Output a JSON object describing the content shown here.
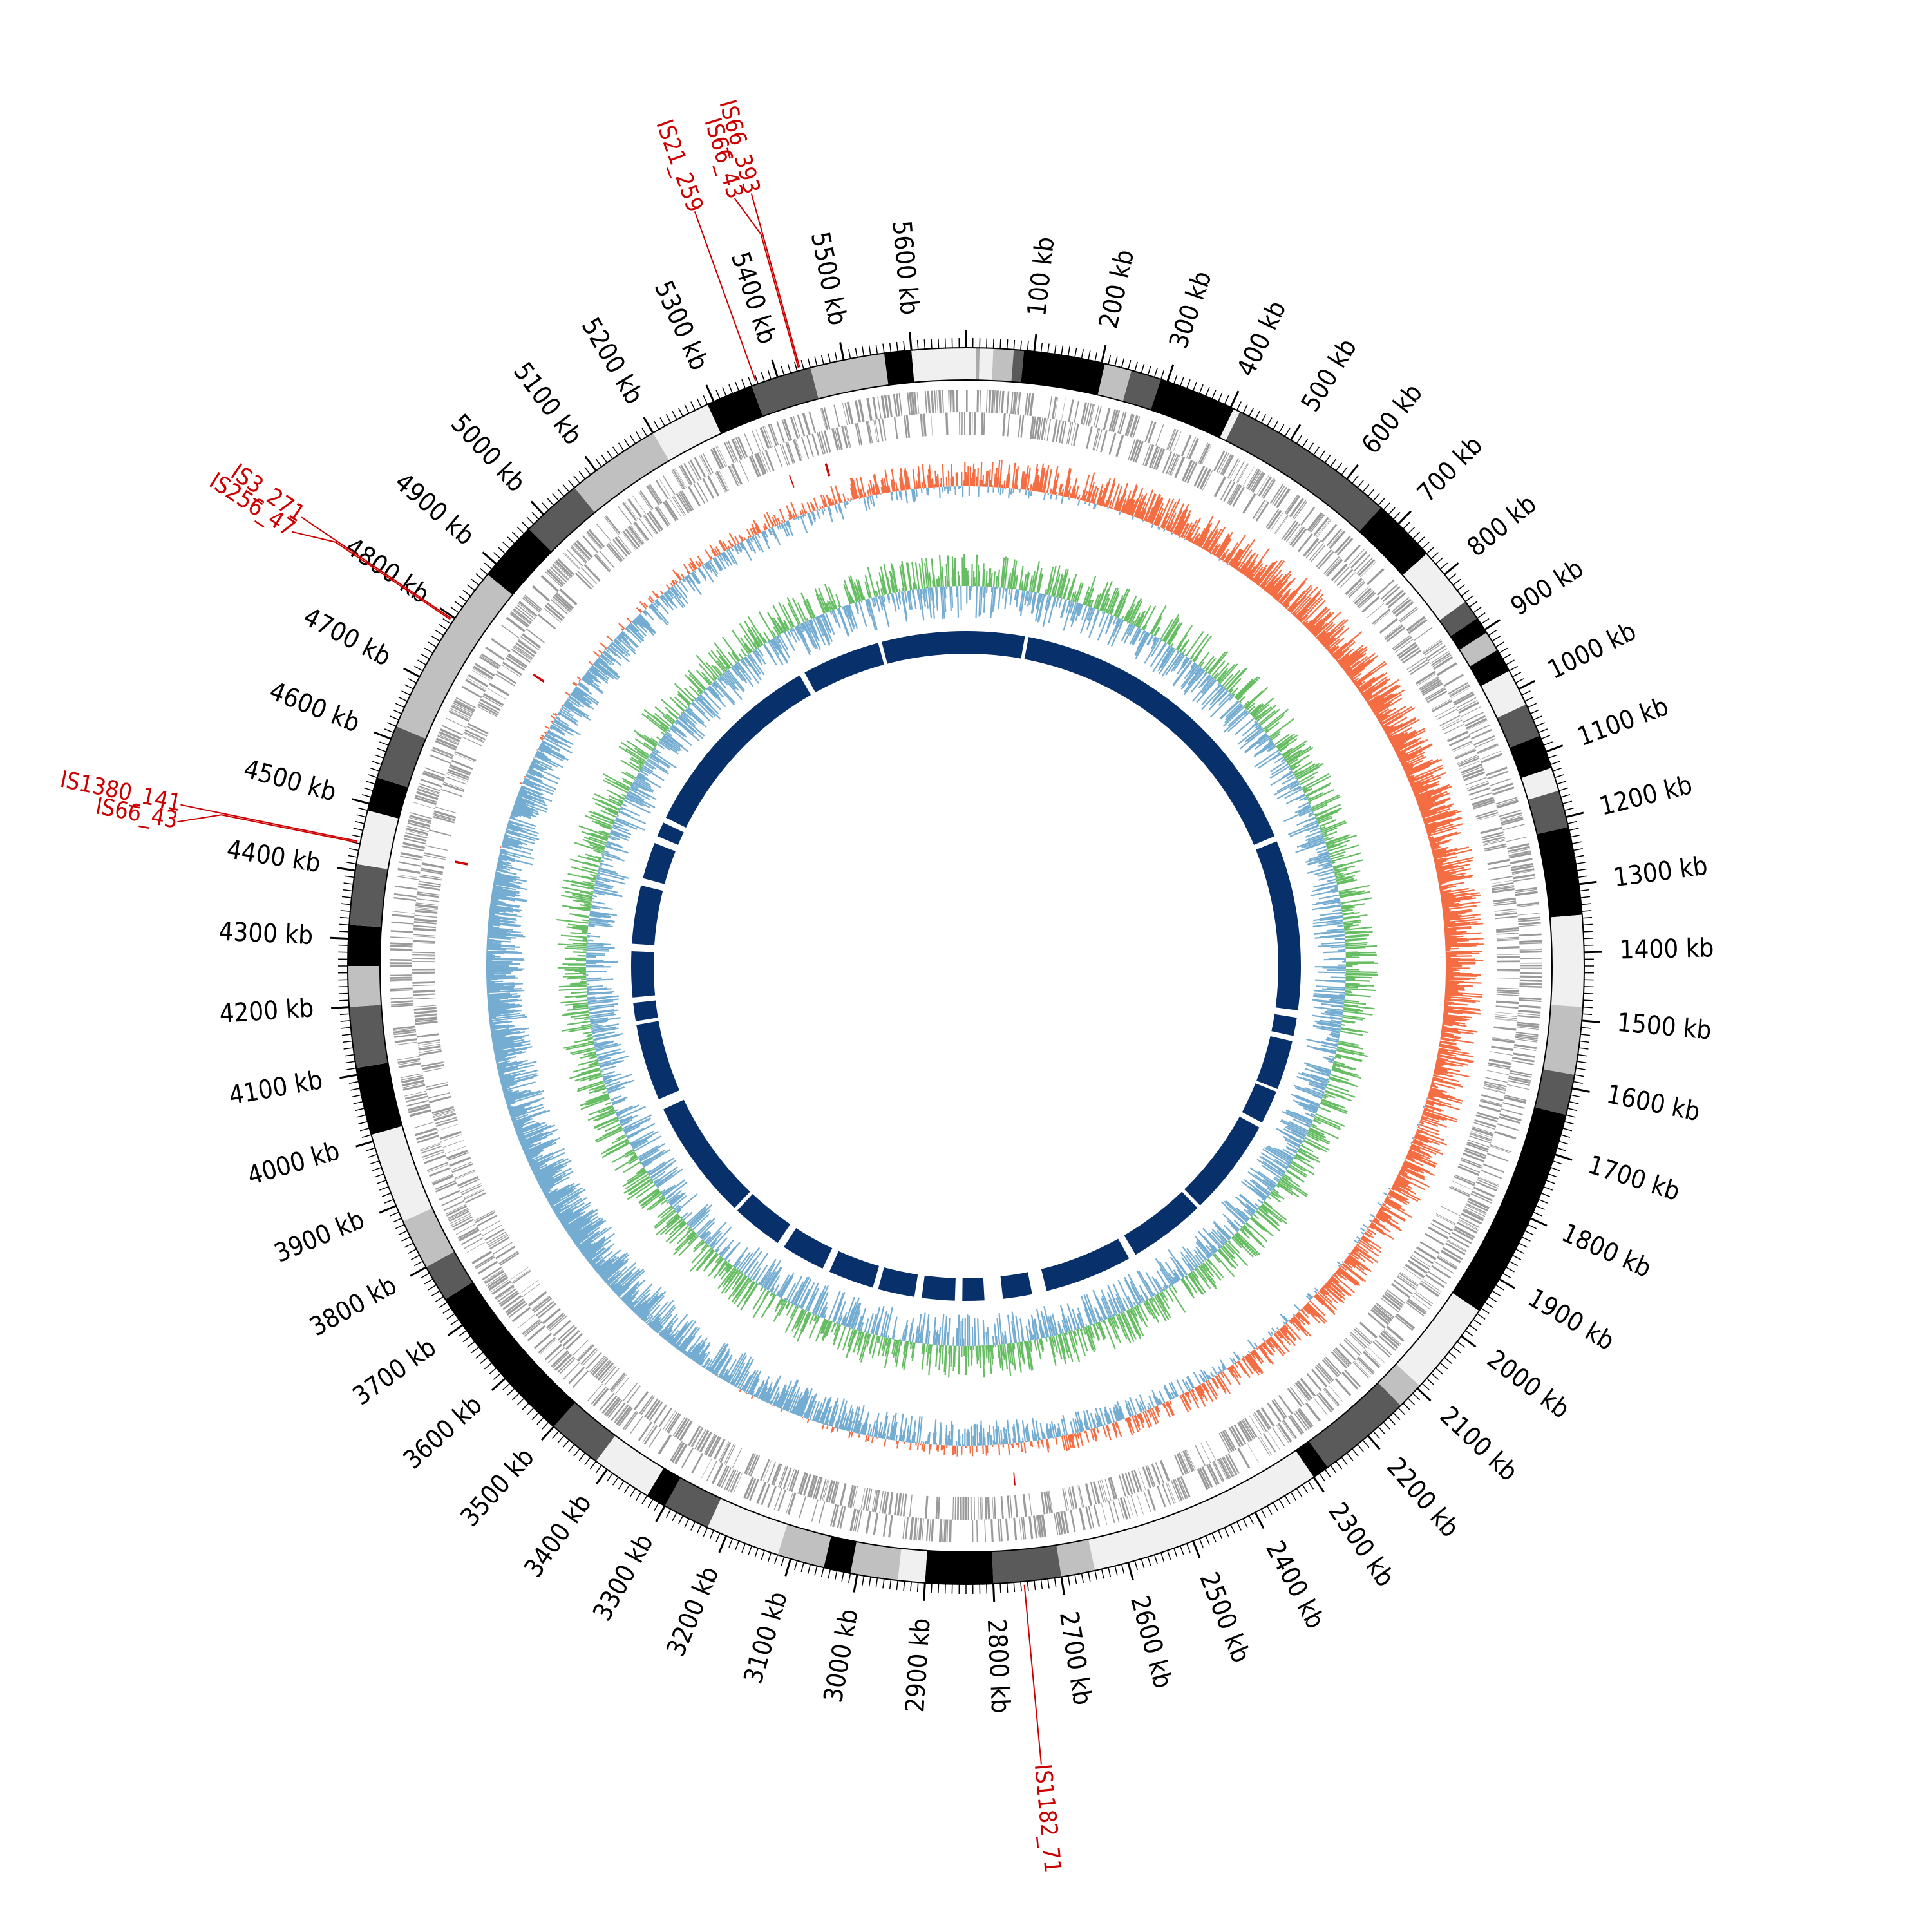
{
  "genome": {
    "length_kb": 5680,
    "tick_major_kb": 100,
    "tick_minor_kb": 10,
    "tick_label_suffix": " kb",
    "tick_labels": [
      "100 kb",
      "200 kb",
      "300 kb",
      "400 kb",
      "500 kb",
      "600 kb",
      "700 kb",
      "800 kb",
      "900 kb",
      "1000 kb",
      "1100 kb",
      "1200 kb",
      "1300 kb",
      "1400 kb",
      "1500 kb",
      "1600 kb",
      "1700 kb",
      "1800 kb",
      "1900 kb",
      "2000 kb",
      "2100 kb",
      "2200 kb",
      "2300 kb",
      "2400 kb",
      "2500 kb",
      "2600 kb",
      "2700 kb",
      "2800 kb",
      "2900 kb",
      "3000 kb",
      "3100 kb",
      "3200 kb",
      "3300 kb",
      "3400 kb",
      "3500 kb",
      "3600 kb",
      "3700 kb",
      "3800 kb",
      "3900 kb",
      "4000 kb",
      "4100 kb",
      "4200 kb",
      "4300 kb",
      "4400 kb",
      "4500 kb",
      "4600 kb",
      "4700 kb",
      "4800 kb",
      "4900 kb",
      "5000 kb",
      "5100 kb",
      "5200 kb",
      "5300 kb",
      "5400 kb",
      "5500 kb",
      "5600 kb"
    ]
  },
  "ideogram_bands": [
    [
      0,
      15,
      "#f0f0f0"
    ],
    [
      15,
      20,
      "#aaaaaa"
    ],
    [
      20,
      40,
      "#f0f0f0"
    ],
    [
      40,
      70,
      "#c0c0c0"
    ],
    [
      70,
      85,
      "#5a5a5a"
    ],
    [
      85,
      205,
      "#000000"
    ],
    [
      205,
      245,
      "#c0c0c0"
    ],
    [
      245,
      290,
      "#5a5a5a"
    ],
    [
      290,
      405,
      "#000000"
    ],
    [
      405,
      415,
      "#f0f0f0"
    ],
    [
      415,
      665,
      "#5a5a5a"
    ],
    [
      665,
      760,
      "#000000"
    ],
    [
      760,
      850,
      "#f0f0f0"
    ],
    [
      850,
      880,
      "#5a5a5a"
    ],
    [
      880,
      905,
      "#000000"
    ],
    [
      905,
      935,
      "#c0c0c0"
    ],
    [
      935,
      970,
      "#000000"
    ],
    [
      970,
      1025,
      "#f0f0f0"
    ],
    [
      1025,
      1075,
      "#5a5a5a"
    ],
    [
      1075,
      1125,
      "#000000"
    ],
    [
      1125,
      1160,
      "#f0f0f0"
    ],
    [
      1160,
      1215,
      "#5a5a5a"
    ],
    [
      1215,
      1345,
      "#000000"
    ],
    [
      1345,
      1480,
      "#f0f0f0"
    ],
    [
      1480,
      1580,
      "#c0c0c0"
    ],
    [
      1580,
      1640,
      "#5a5a5a"
    ],
    [
      1640,
      1955,
      "#000000"
    ],
    [
      1955,
      2095,
      "#f0f0f0"
    ],
    [
      2095,
      2135,
      "#c0c0c0"
    ],
    [
      2135,
      2275,
      "#5a5a5a"
    ],
    [
      2275,
      2300,
      "#000000"
    ],
    [
      2300,
      2650,
      "#f0f0f0"
    ],
    [
      2650,
      2700,
      "#c0c0c0"
    ],
    [
      2700,
      2800,
      "#5a5a5a"
    ],
    [
      2800,
      2900,
      "#000000"
    ],
    [
      2900,
      2940,
      "#f0f0f0"
    ],
    [
      2940,
      3010,
      "#c0c0c0"
    ],
    [
      3010,
      3050,
      "#000000"
    ],
    [
      3050,
      3120,
      "#c0c0c0"
    ],
    [
      3120,
      3230,
      "#f0f0f0"
    ],
    [
      3230,
      3300,
      "#5a5a5a"
    ],
    [
      3300,
      3330,
      "#000000"
    ],
    [
      3330,
      3420,
      "#f0f0f0"
    ],
    [
      3420,
      3500,
      "#5a5a5a"
    ],
    [
      3500,
      3745,
      "#000000"
    ],
    [
      3745,
      3800,
      "#5a5a5a"
    ],
    [
      3800,
      3875,
      "#c0c0c0"
    ],
    [
      3875,
      4010,
      "#f0f0f0"
    ],
    [
      4010,
      4110,
      "#000000"
    ],
    [
      4110,
      4200,
      "#5a5a5a"
    ],
    [
      4200,
      4260,
      "#c0c0c0"
    ],
    [
      4260,
      4320,
      "#000000"
    ],
    [
      4320,
      4410,
      "#5a5a5a"
    ],
    [
      4410,
      4490,
      "#f0f0f0"
    ],
    [
      4490,
      4540,
      "#000000"
    ],
    [
      4540,
      4620,
      "#5a5a5a"
    ],
    [
      4620,
      4880,
      "#c0c0c0"
    ],
    [
      4880,
      4970,
      "#000000"
    ],
    [
      4970,
      5060,
      "#5a5a5a"
    ],
    [
      5060,
      5200,
      "#c0c0c0"
    ],
    [
      5200,
      5290,
      "#f0f0f0"
    ],
    [
      5290,
      5360,
      "#000000"
    ],
    [
      5360,
      5450,
      "#5a5a5a"
    ],
    [
      5450,
      5560,
      "#c0c0c0"
    ],
    [
      5560,
      5600,
      "#000000"
    ],
    [
      5600,
      5680,
      "#f0f0f0"
    ]
  ],
  "insertion_sequences": [
    {
      "label": "IS66_393",
      "position_kb": 5435,
      "color": "#cc0000"
    },
    {
      "label": "IS66_43",
      "position_kb": 5433,
      "color": "#cc0000"
    },
    {
      "label": "IS21_259",
      "position_kb": 5368,
      "color": "#cc0000"
    },
    {
      "label": "IS3_271",
      "position_kb": 4797,
      "color": "#cc0000"
    },
    {
      "label": "IS256_47",
      "position_kb": 4795,
      "color": "#cc0000"
    },
    {
      "label": "IS1380_141",
      "position_kb": 4443,
      "color": "#cc0000"
    },
    {
      "label": "IS66_43",
      "position_kb": 4441,
      "color": "#cc0000"
    },
    {
      "label": "IS1182_71",
      "position_kb": 2755,
      "color": "#cc0000"
    }
  ],
  "track_colors": {
    "gene_track": "#9a9a9a",
    "is_marker": "#cc0000",
    "gc_skew_positive": "#f46d43",
    "gc_skew_negative": "#74add1",
    "gc_content_positive": "#66bd63",
    "gc_content_negative": "#74add1",
    "coverage_track": "#08306b",
    "ideogram_outline": "#000000",
    "ticks": "#000000"
  },
  "coverage_gaps_kb": [
    [
      160,
      170
    ],
    [
      1060,
      1075
    ],
    [
      1540,
      1560
    ],
    [
      1610,
      1625
    ],
    [
      1760,
      1768
    ],
    [
      1860,
      1875
    ],
    [
      2140,
      2150
    ],
    [
      2360,
      2380
    ],
    [
      2620,
      2660
    ],
    [
      2740,
      2790
    ],
    [
      2850,
      2870
    ],
    [
      2960,
      2980
    ],
    [
      3080,
      3095
    ],
    [
      3220,
      3240
    ],
    [
      3360,
      3380
    ],
    [
      3520,
      3530
    ],
    [
      3860,
      3890
    ],
    [
      4100,
      4110
    ],
    [
      4160,
      4175
    ],
    [
      4300,
      4320
    ],
    [
      4480,
      4500
    ],
    [
      4600,
      4620
    ],
    [
      4660,
      4675
    ],
    [
      5210,
      5225
    ],
    [
      5440,
      5450
    ]
  ]
}
